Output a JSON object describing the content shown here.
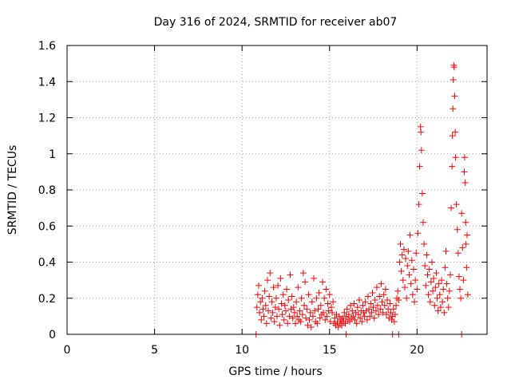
{
  "chart_data": {
    "type": "scatter",
    "title": "Day 316 of 2024, SRMTID for receiver ab07",
    "xlabel": "GPS time / hours",
    "ylabel": "SRMTID / TECUs",
    "xlim": [
      0,
      24
    ],
    "ylim": [
      0,
      1.6
    ],
    "x_ticks": [
      0,
      5,
      10,
      15,
      20
    ],
    "x_tick_labels": [
      "0",
      "5",
      "10",
      "15",
      "20"
    ],
    "y_ticks": [
      0,
      0.2,
      0.4,
      0.6,
      0.8,
      1.0,
      1.2,
      1.4,
      1.6
    ],
    "y_tick_labels": [
      "0",
      "0.2",
      "0.4",
      "0.6",
      "0.8",
      "1",
      "1.2",
      "1.4",
      "1.6"
    ],
    "grid": true,
    "marker": "plus",
    "color": "#ff0000",
    "series": [
      {
        "name": "SRMTID",
        "points": [
          [
            10.85,
            0.15
          ],
          [
            10.9,
            0.22
          ],
          [
            10.95,
            0.27
          ],
          [
            11.0,
            0.12
          ],
          [
            11.05,
            0.18
          ],
          [
            11.1,
            0.08
          ],
          [
            11.15,
            0.2
          ],
          [
            11.2,
            0.14
          ],
          [
            11.25,
            0.1
          ],
          [
            11.3,
            0.24
          ],
          [
            11.35,
            0.16
          ],
          [
            11.4,
            0.06
          ],
          [
            11.45,
            0.3
          ],
          [
            11.5,
            0.13
          ],
          [
            11.55,
            0.21
          ],
          [
            11.6,
            0.34
          ],
          [
            11.65,
            0.09
          ],
          [
            11.7,
            0.18
          ],
          [
            11.75,
            0.12
          ],
          [
            11.8,
            0.26
          ],
          [
            11.85,
            0.07
          ],
          [
            11.9,
            0.15
          ],
          [
            11.95,
            0.2
          ],
          [
            12.0,
            0.1
          ],
          [
            12.05,
            0.27
          ],
          [
            12.1,
            0.14
          ],
          [
            12.15,
            0.05
          ],
          [
            12.2,
            0.31
          ],
          [
            12.25,
            0.17
          ],
          [
            12.3,
            0.11
          ],
          [
            12.35,
            0.22
          ],
          [
            12.4,
            0.08
          ],
          [
            12.45,
            0.16
          ],
          [
            12.5,
            0.13
          ],
          [
            12.55,
            0.25
          ],
          [
            12.6,
            0.06
          ],
          [
            12.65,
            0.19
          ],
          [
            12.7,
            0.1
          ],
          [
            12.75,
            0.33
          ],
          [
            12.8,
            0.14
          ],
          [
            12.85,
            0.21
          ],
          [
            12.9,
            0.09
          ],
          [
            12.95,
            0.15
          ],
          [
            13.0,
            0.12
          ],
          [
            13.05,
            0.06
          ],
          [
            13.1,
            0.18
          ],
          [
            13.15,
            0.1
          ],
          [
            13.2,
            0.26
          ],
          [
            13.25,
            0.08
          ],
          [
            13.3,
            0.13
          ],
          [
            13.35,
            0.07
          ],
          [
            13.4,
            0.2
          ],
          [
            13.45,
            0.11
          ],
          [
            13.5,
            0.34
          ],
          [
            13.55,
            0.16
          ],
          [
            13.6,
            0.29
          ],
          [
            13.65,
            0.09
          ],
          [
            13.7,
            0.14
          ],
          [
            13.75,
            0.05
          ],
          [
            13.8,
            0.22
          ],
          [
            13.85,
            0.08
          ],
          [
            13.9,
            0.12
          ],
          [
            13.95,
            0.04
          ],
          [
            14.0,
            0.18
          ],
          [
            14.05,
            0.1
          ],
          [
            14.1,
            0.31
          ],
          [
            14.15,
            0.13
          ],
          [
            14.2,
            0.07
          ],
          [
            14.25,
            0.2
          ],
          [
            14.3,
            0.06
          ],
          [
            14.35,
            0.14
          ],
          [
            14.4,
            0.23
          ],
          [
            14.45,
            0.09
          ],
          [
            14.5,
            0.16
          ],
          [
            14.55,
            0.11
          ],
          [
            14.6,
            0.29
          ],
          [
            14.65,
            0.12
          ],
          [
            14.7,
            0.2
          ],
          [
            14.75,
            0.08
          ],
          [
            14.8,
            0.25
          ],
          [
            14.85,
            0.1
          ],
          [
            14.9,
            0.17
          ],
          [
            14.95,
            0.13
          ],
          [
            15.0,
            0.22
          ],
          [
            15.05,
            0.07
          ],
          [
            15.1,
            0.15
          ],
          [
            15.15,
            0.12
          ],
          [
            15.2,
            0.18
          ],
          [
            15.25,
            0.06
          ],
          [
            15.3,
            0.09
          ],
          [
            15.35,
            0.05
          ],
          [
            15.4,
            0.11
          ],
          [
            15.45,
            0.07
          ],
          [
            15.5,
            0.04
          ],
          [
            15.55,
            0.1
          ],
          [
            15.6,
            0.06
          ],
          [
            15.65,
            0.08
          ],
          [
            15.7,
            0.05
          ],
          [
            15.75,
            0.09
          ],
          [
            15.8,
            0.07
          ],
          [
            15.85,
            0.12
          ],
          [
            15.9,
            0.06
          ],
          [
            15.95,
            0.1
          ],
          [
            16.0,
            0.14
          ],
          [
            16.05,
            0.08
          ],
          [
            16.1,
            0.11
          ],
          [
            16.15,
            0.07
          ],
          [
            16.2,
            0.16
          ],
          [
            16.25,
            0.09
          ],
          [
            16.3,
            0.13
          ],
          [
            16.35,
            0.1
          ],
          [
            16.4,
            0.17
          ],
          [
            16.45,
            0.08
          ],
          [
            16.5,
            0.12
          ],
          [
            16.55,
            0.06
          ],
          [
            16.6,
            0.15
          ],
          [
            16.65,
            0.11
          ],
          [
            16.7,
            0.19
          ],
          [
            16.75,
            0.09
          ],
          [
            16.8,
            0.13
          ],
          [
            16.85,
            0.07
          ],
          [
            16.9,
            0.16
          ],
          [
            16.95,
            0.12
          ],
          [
            17.0,
            0.1
          ],
          [
            17.05,
            0.18
          ],
          [
            17.1,
            0.13
          ],
          [
            17.15,
            0.08
          ],
          [
            17.2,
            0.21
          ],
          [
            17.25,
            0.14
          ],
          [
            17.3,
            0.1
          ],
          [
            17.35,
            0.17
          ],
          [
            17.4,
            0.12
          ],
          [
            17.45,
            0.23
          ],
          [
            17.5,
            0.15
          ],
          [
            17.55,
            0.09
          ],
          [
            17.6,
            0.19
          ],
          [
            17.65,
            0.13
          ],
          [
            17.7,
            0.26
          ],
          [
            17.75,
            0.16
          ],
          [
            17.8,
            0.11
          ],
          [
            17.85,
            0.21
          ],
          [
            17.9,
            0.14
          ],
          [
            17.95,
            0.28
          ],
          [
            18.0,
            0.18
          ],
          [
            18.05,
            0.12
          ],
          [
            18.1,
            0.22
          ],
          [
            18.15,
            0.16
          ],
          [
            18.2,
            0.25
          ],
          [
            18.25,
            0.11
          ],
          [
            18.3,
            0.19
          ],
          [
            18.35,
            0.14
          ],
          [
            18.4,
            0.09
          ],
          [
            18.45,
            0.17
          ],
          [
            18.5,
            0.12
          ],
          [
            18.55,
            0.08
          ],
          [
            18.6,
            0.1
          ],
          [
            18.65,
            0.14
          ],
          [
            18.7,
            0.07
          ],
          [
            18.75,
            0.11
          ],
          [
            18.8,
            0.16
          ],
          [
            18.85,
            0.2
          ],
          [
            18.9,
            0.24
          ],
          [
            18.95,
            0.19
          ],
          [
            19.0,
            0.4
          ],
          [
            19.05,
            0.5
          ],
          [
            19.1,
            0.35
          ],
          [
            19.15,
            0.44
          ],
          [
            19.2,
            0.3
          ],
          [
            19.25,
            0.47
          ],
          [
            19.3,
            0.26
          ],
          [
            19.35,
            0.42
          ],
          [
            19.4,
            0.2
          ],
          [
            19.45,
            0.38
          ],
          [
            19.5,
            0.46
          ],
          [
            19.55,
            0.33
          ],
          [
            19.6,
            0.55
          ],
          [
            19.65,
            0.28
          ],
          [
            19.7,
            0.41
          ],
          [
            19.75,
            0.22
          ],
          [
            19.8,
            0.36
          ],
          [
            19.85,
            0.18
          ],
          [
            19.9,
            0.3
          ],
          [
            19.95,
            0.45
          ],
          [
            20.0,
            0.25
          ],
          [
            20.05,
            0.56
          ],
          [
            20.1,
            0.72
          ],
          [
            20.15,
            0.93
          ],
          [
            20.2,
            1.15
          ],
          [
            20.22,
            1.12
          ],
          [
            20.25,
            1.02
          ],
          [
            20.3,
            0.78
          ],
          [
            20.35,
            0.62
          ],
          [
            20.4,
            0.5
          ],
          [
            20.45,
            0.38
          ],
          [
            20.5,
            0.27
          ],
          [
            20.55,
            0.44
          ],
          [
            20.6,
            0.33
          ],
          [
            20.65,
            0.22
          ],
          [
            20.7,
            0.36
          ],
          [
            20.75,
            0.18
          ],
          [
            20.8,
            0.29
          ],
          [
            20.85,
            0.4
          ],
          [
            20.9,
            0.24
          ],
          [
            20.95,
            0.31
          ],
          [
            21.0,
            0.16
          ],
          [
            21.05,
            0.26
          ],
          [
            21.1,
            0.34
          ],
          [
            21.15,
            0.2
          ],
          [
            21.2,
            0.13
          ],
          [
            21.25,
            0.28
          ],
          [
            21.3,
            0.22
          ],
          [
            21.35,
            0.15
          ],
          [
            21.4,
            0.3
          ],
          [
            21.45,
            0.18
          ],
          [
            21.5,
            0.25
          ],
          [
            21.55,
            0.12
          ],
          [
            21.6,
            0.37
          ],
          [
            21.65,
            0.46
          ],
          [
            21.7,
            0.28
          ],
          [
            21.75,
            0.2
          ],
          [
            21.8,
            0.15
          ],
          [
            21.85,
            0.24
          ],
          [
            21.9,
            0.33
          ],
          [
            21.95,
            0.7
          ],
          [
            22.0,
            0.93
          ],
          [
            22.02,
            1.1
          ],
          [
            22.05,
            1.25
          ],
          [
            22.07,
            1.41
          ],
          [
            22.1,
            1.49
          ],
          [
            22.12,
            1.48
          ],
          [
            22.15,
            1.32
          ],
          [
            22.18,
            1.12
          ],
          [
            22.2,
            0.98
          ],
          [
            22.25,
            0.72
          ],
          [
            22.3,
            0.58
          ],
          [
            22.35,
            0.45
          ],
          [
            22.4,
            0.32
          ],
          [
            22.45,
            0.25
          ],
          [
            22.5,
            0.2
          ],
          [
            22.55,
            0.67
          ],
          [
            22.6,
            0.48
          ],
          [
            22.65,
            0.3
          ],
          [
            22.7,
            0.9
          ],
          [
            22.72,
            0.98
          ],
          [
            22.75,
            0.84
          ],
          [
            22.78,
            0.62
          ],
          [
            22.8,
            0.5
          ],
          [
            22.83,
            0.37
          ],
          [
            22.86,
            0.55
          ],
          [
            22.9,
            0.22
          ],
          [
            10.8,
            0.0
          ],
          [
            15.95,
            0.0
          ],
          [
            18.6,
            0.0
          ],
          [
            18.95,
            0.0
          ],
          [
            22.55,
            0.0
          ]
        ]
      }
    ]
  }
}
